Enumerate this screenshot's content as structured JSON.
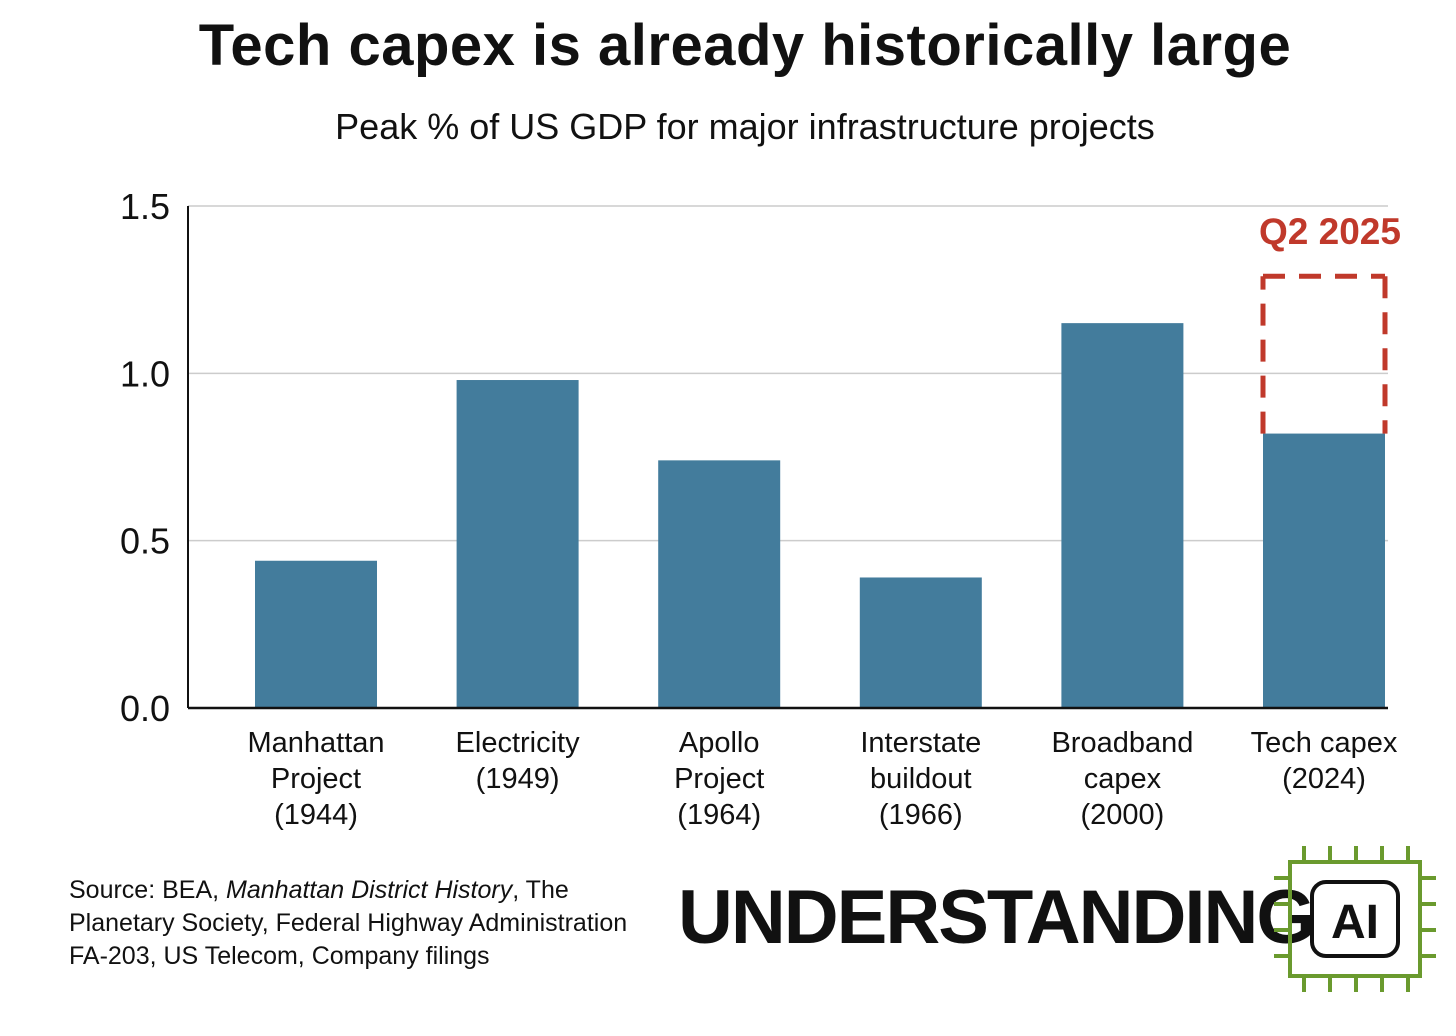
{
  "title": "Tech capex is already historically large",
  "subtitle": "Peak % of US GDP for major infrastructure projects",
  "colors": {
    "bar": "#437c9c",
    "annotation": "#c0392b",
    "grid": "#cccccc",
    "axis": "#111111",
    "logo": "#6a9a2e"
  },
  "chart_data": {
    "type": "bar",
    "title": "Tech capex is already historically large",
    "subtitle": "Peak % of US GDP for major infrastructure projects",
    "xlabel": "",
    "ylabel": "",
    "ylim": [
      0,
      1.5
    ],
    "yticks": [
      0.0,
      0.5,
      1.0,
      1.5
    ],
    "ytick_labels": [
      "0.0",
      "0.5",
      "1.0",
      "1.5"
    ],
    "grid": true,
    "categories": [
      [
        "Manhattan",
        "Project",
        "(1944)"
      ],
      [
        "Electricity",
        "(1949)"
      ],
      [
        "Apollo",
        "Project",
        "(1964)"
      ],
      [
        "Interstate",
        "buildout",
        "(1966)"
      ],
      [
        "Broadband",
        "capex",
        "(2000)"
      ],
      [
        "Tech capex",
        "(2024)"
      ]
    ],
    "values": [
      0.44,
      0.98,
      0.74,
      0.39,
      1.15,
      0.82
    ],
    "annotation": {
      "label": "Q2 2025",
      "category_index": 5,
      "value": 1.29,
      "style": "dashed outline"
    }
  },
  "source": {
    "prefix": "Source: BEA, ",
    "italic": "Manhattan District History",
    "suffix": ", The",
    "line2": "Planetary Society, Federal Highway Administration",
    "line3": "FA-203, US Telecom, Company filings"
  },
  "brand": {
    "text": "UNDERSTANDING",
    "logo_text": "AI",
    "logo_icon": "chip-icon"
  }
}
